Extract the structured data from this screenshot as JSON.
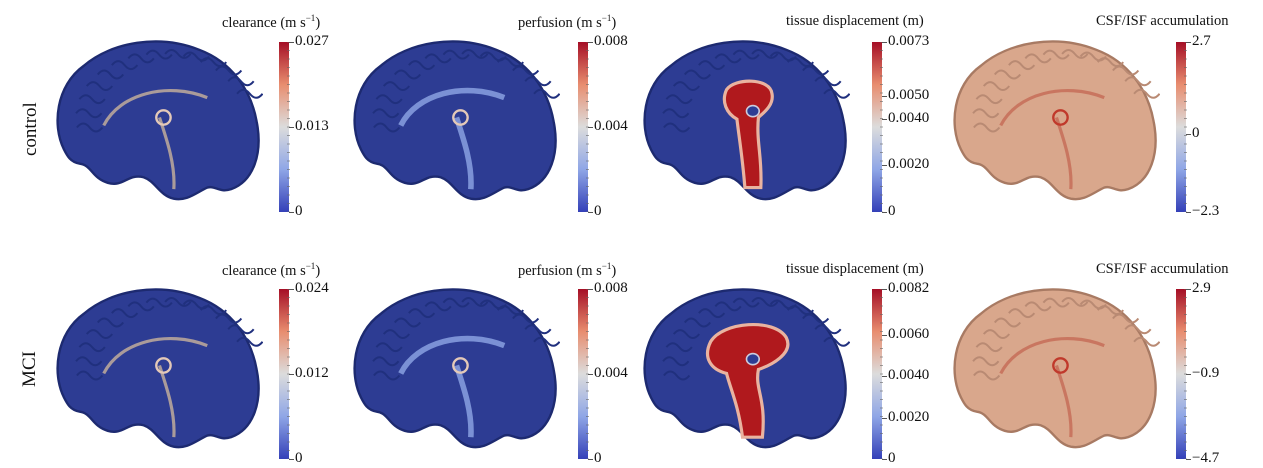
{
  "rows": [
    {
      "label": "control",
      "panels": [
        {
          "title": "clearance (m s",
          "title_sup": "−1",
          "title_end": ")",
          "map": "blue-clear",
          "ticks": [
            {
              "label": "0.027",
              "frac": 1.0
            },
            {
              "label": "0.013",
              "frac": 0.5
            },
            {
              "label": "0",
              "frac": 0.0
            }
          ]
        },
        {
          "title": "perfusion (m s",
          "title_sup": "−1",
          "title_end": ")",
          "map": "blue-perf",
          "ticks": [
            {
              "label": "0.008",
              "frac": 1.0
            },
            {
              "label": "0.004",
              "frac": 0.5
            },
            {
              "label": "0",
              "frac": 0.0
            }
          ]
        },
        {
          "title": "tissue displacement (m)",
          "title_sup": "",
          "title_end": "",
          "map": "disp",
          "ticks": [
            {
              "label": "0.0073",
              "frac": 1.0
            },
            {
              "label": "0.0050",
              "frac": 0.685
            },
            {
              "label": "0.0040",
              "frac": 0.548
            },
            {
              "label": "0.0020",
              "frac": 0.274
            },
            {
              "label": "0",
              "frac": 0.0
            }
          ]
        },
        {
          "title": "CSF/ISF accumulation",
          "title_sup": "",
          "title_end": "",
          "map": "tan",
          "ticks": [
            {
              "label": "2.7",
              "frac": 1.0
            },
            {
              "label": "0",
              "frac": 0.46
            },
            {
              "label": "−2.3",
              "frac": 0.0
            }
          ]
        }
      ]
    },
    {
      "label": "MCI",
      "panels": [
        {
          "title": "clearance (m s",
          "title_sup": "−1",
          "title_end": ")",
          "map": "blue-clear",
          "ticks": [
            {
              "label": "0.024",
              "frac": 1.0
            },
            {
              "label": "0.012",
              "frac": 0.5
            },
            {
              "label": "0",
              "frac": 0.0
            }
          ]
        },
        {
          "title": "perfusion (m s",
          "title_sup": "−1",
          "title_end": ")",
          "map": "blue-perf",
          "ticks": [
            {
              "label": "0.008",
              "frac": 1.0
            },
            {
              "label": "0.004",
              "frac": 0.5
            },
            {
              "label": "0",
              "frac": 0.0
            }
          ]
        },
        {
          "title": "tissue displacement (m)",
          "title_sup": "",
          "title_end": "",
          "map": "disp",
          "ticks": [
            {
              "label": "0.0082",
              "frac": 1.0
            },
            {
              "label": "0.0060",
              "frac": 0.732
            },
            {
              "label": "0.0040",
              "frac": 0.488
            },
            {
              "label": "0.0020",
              "frac": 0.244
            },
            {
              "label": "0",
              "frac": 0.0
            }
          ]
        },
        {
          "title": "CSF/ISF accumulation",
          "title_sup": "",
          "title_end": "",
          "map": "tan",
          "ticks": [
            {
              "label": "2.9",
              "frac": 1.0
            },
            {
              "label": "−0.9",
              "frac": 0.5
            },
            {
              "label": "−4.7",
              "frac": 0.0
            }
          ]
        }
      ]
    }
  ],
  "colors": {
    "bar_top": "#a50f26",
    "bar_mid": "#dcdcdc",
    "bar_bottom": "#3440b8",
    "brain_blue": "#2d3c93",
    "brain_tan": "#d9a78c",
    "hot": "#b0191d"
  }
}
